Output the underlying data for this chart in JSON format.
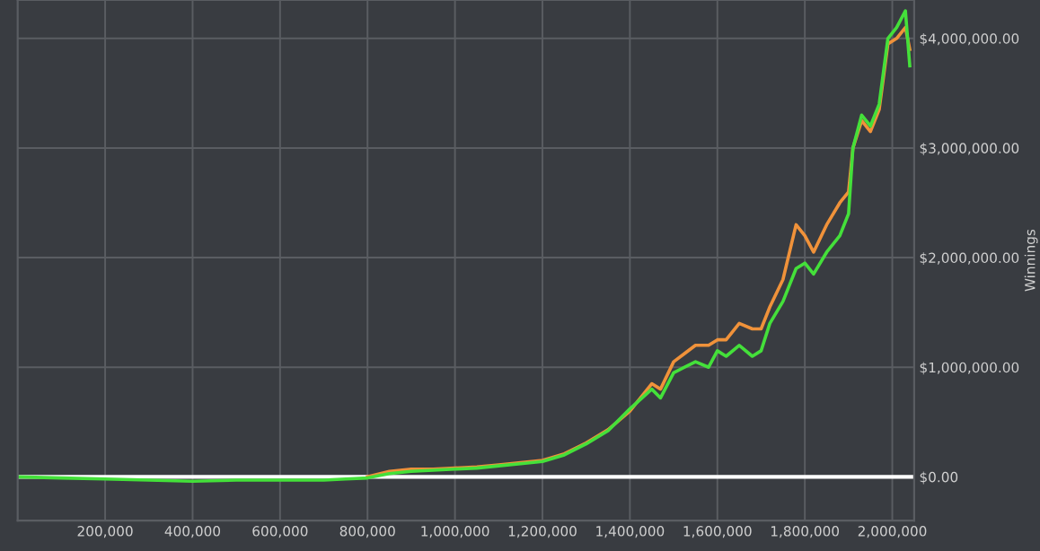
{
  "chart_data": {
    "type": "line",
    "ylabel": "Winnings",
    "x": [
      0,
      100000,
      200000,
      300000,
      400000,
      500000,
      600000,
      700000,
      750000,
      800000,
      850000,
      900000,
      950000,
      1000000,
      1050000,
      1100000,
      1150000,
      1200000,
      1250000,
      1300000,
      1350000,
      1400000,
      1450000,
      1470000,
      1500000,
      1550000,
      1580000,
      1600000,
      1620000,
      1650000,
      1680000,
      1700000,
      1720000,
      1750000,
      1780000,
      1800000,
      1820000,
      1850000,
      1880000,
      1900000,
      1910000,
      1930000,
      1950000,
      1970000,
      1990000,
      2010000,
      2030000,
      2040000
    ],
    "series": [
      {
        "color": "#f0923a",
        "values": [
          null,
          null,
          null,
          null,
          null,
          null,
          null,
          null,
          null,
          0,
          50000,
          70000,
          70000,
          80000,
          90000,
          110000,
          130000,
          150000,
          210000,
          310000,
          430000,
          600000,
          850000,
          800000,
          1050000,
          1200000,
          1200000,
          1250000,
          1250000,
          1400000,
          1350000,
          1350000,
          1550000,
          1800000,
          2300000,
          2200000,
          2050000,
          2300000,
          2500000,
          2600000,
          3000000,
          3250000,
          3150000,
          3350000,
          3950000,
          4000000,
          4100000,
          3900000
        ]
      },
      {
        "color": "#44e03a",
        "values": [
          0,
          -10000,
          -20000,
          -30000,
          -40000,
          -30000,
          -30000,
          -30000,
          -20000,
          -10000,
          30000,
          50000,
          60000,
          70000,
          80000,
          100000,
          120000,
          140000,
          200000,
          300000,
          420000,
          620000,
          800000,
          720000,
          950000,
          1050000,
          1000000,
          1150000,
          1100000,
          1200000,
          1100000,
          1150000,
          1400000,
          1600000,
          1900000,
          1950000,
          1850000,
          2050000,
          2200000,
          2400000,
          3000000,
          3300000,
          3200000,
          3400000,
          4000000,
          4100000,
          4250000,
          3750000
        ]
      }
    ],
    "xlim": [
      0,
      2050000
    ],
    "xticks": [
      {
        "value": 200000,
        "label": "200,000"
      },
      {
        "value": 400000,
        "label": "400,000"
      },
      {
        "value": 600000,
        "label": "600,000"
      },
      {
        "value": 800000,
        "label": "800,000"
      },
      {
        "value": 1000000,
        "label": "1,000,000"
      },
      {
        "value": 1200000,
        "label": "1,200,000"
      },
      {
        "value": 1400000,
        "label": "1,400,000"
      },
      {
        "value": 1600000,
        "label": "1,600,000"
      },
      {
        "value": 1800000,
        "label": "1,800,000"
      },
      {
        "value": 2000000,
        "label": "2,000,000"
      }
    ],
    "ylim": [
      -400000,
      4350000
    ],
    "yticks": [
      {
        "value": 0,
        "label": "$0.00"
      },
      {
        "value": 1000000,
        "label": "$1,000,000.00"
      },
      {
        "value": 2000000,
        "label": "$2,000,000.00"
      },
      {
        "value": 3000000,
        "label": "$3,000,000.00"
      },
      {
        "value": 4000000,
        "label": "$4,000,000.00"
      }
    ],
    "ref_lines": [
      {
        "axis": "y",
        "value": 0,
        "color": "#ffffff"
      }
    ],
    "grid": true,
    "legend": false,
    "marker": "none",
    "line_style": "solid"
  }
}
